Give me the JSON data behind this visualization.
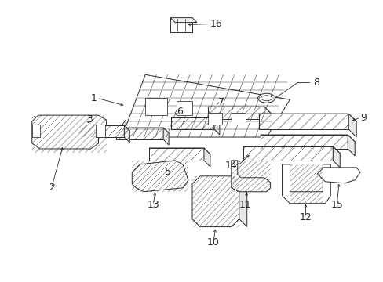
{
  "bg_color": "#ffffff",
  "line_color": "#2a2a2a",
  "lw": 0.7,
  "fs": 9.0,
  "figsize": [
    4.89,
    3.6
  ],
  "dpi": 100
}
